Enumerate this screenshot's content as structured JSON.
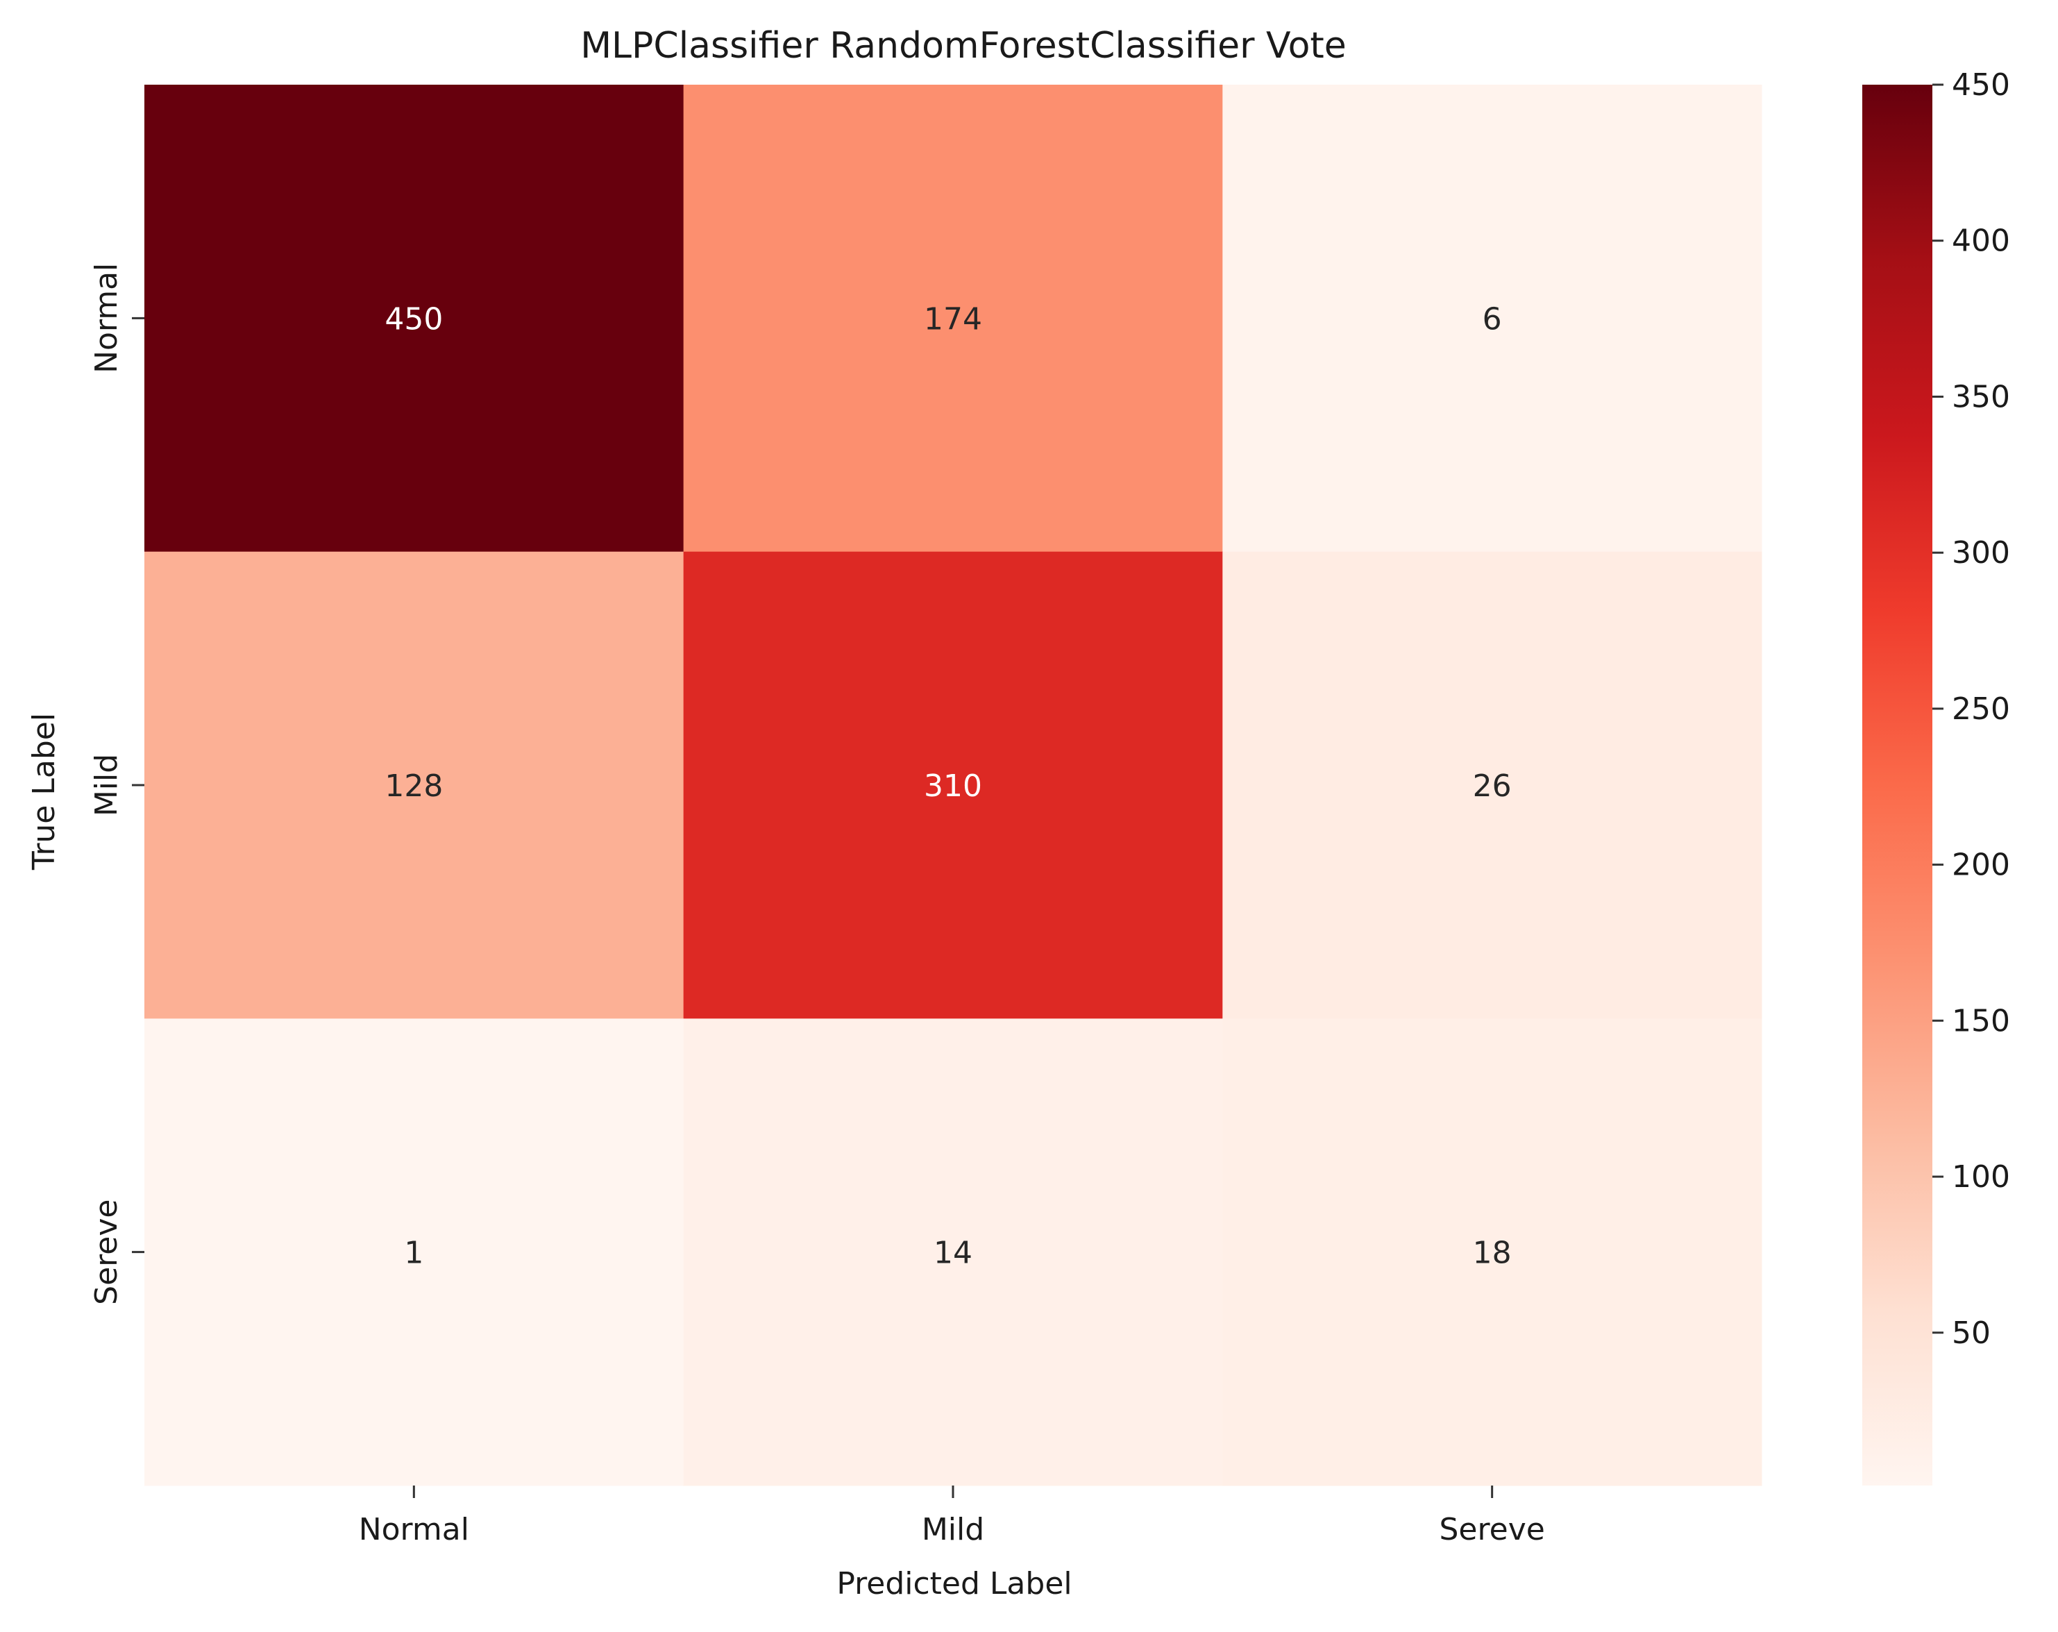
{
  "chart_data": {
    "type": "heatmap",
    "title": "MLPClassifier RandomForestClassifier Vote",
    "xlabel": "Predicted Label",
    "ylabel": "True Label",
    "x_categories": [
      "Normal",
      "Mild",
      "Sereve"
    ],
    "y_categories": [
      "Normal",
      "Mild",
      "Sereve"
    ],
    "values": [
      [
        450,
        174,
        6
      ],
      [
        128,
        310,
        26
      ],
      [
        1,
        14,
        18
      ]
    ],
    "colormap": "Reds",
    "colorbar": {
      "range": [
        1,
        450
      ],
      "ticks": [
        50,
        100,
        150,
        200,
        250,
        300,
        350,
        400,
        450
      ]
    },
    "annotations": true,
    "grid": false
  }
}
